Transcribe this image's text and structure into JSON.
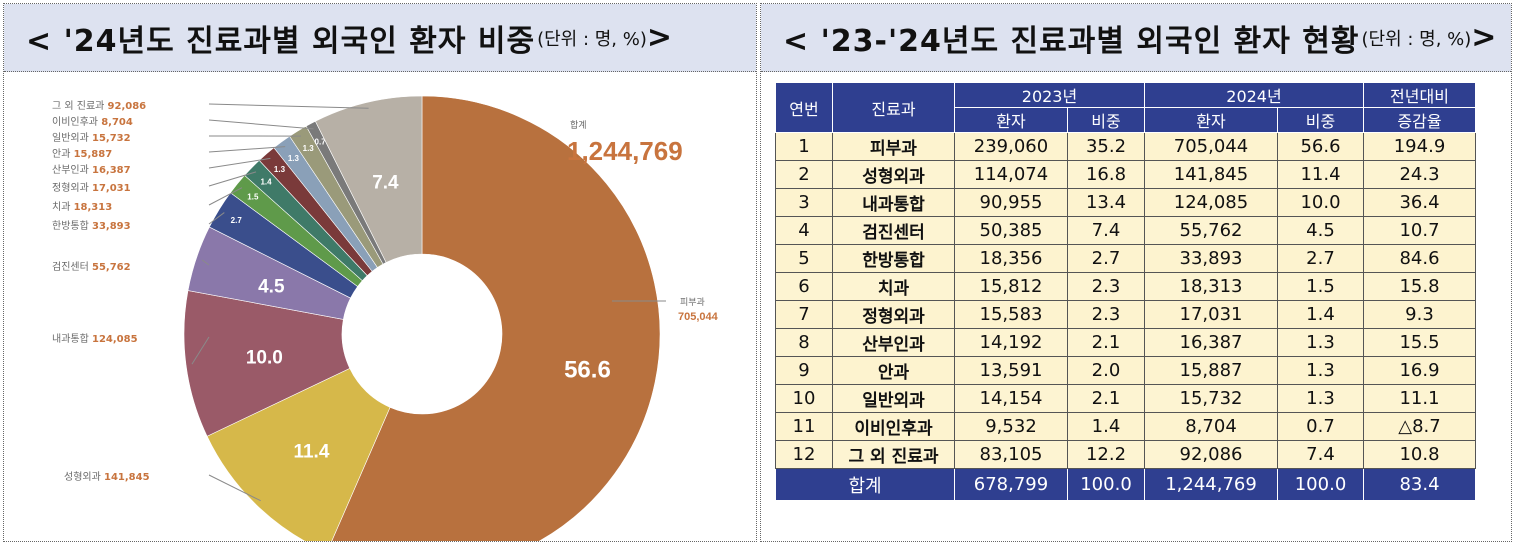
{
  "left": {
    "title_main": "< '24년도 진료과별 외국인 환자 비중",
    "title_unit": "(단위 : 명, %)",
    "title_end": " >"
  },
  "right": {
    "title_main": "< '23-'24년도 진료과별 외국인 환자 현황",
    "title_unit": "(단위 : 명, %)",
    "title_end": " >"
  },
  "chart_data": {
    "type": "pie",
    "donut": true,
    "total_label": "합계",
    "total_value": "1,244,769",
    "slices": [
      {
        "name": "피부과",
        "value": 56.6,
        "label": "56.6",
        "count": "705,044",
        "color": "#b8713e"
      },
      {
        "name": "성형외과",
        "value": 11.4,
        "label": "11.4",
        "count": "141,845",
        "color": "#d6b84a"
      },
      {
        "name": "내과통합",
        "value": 10.0,
        "label": "10.0",
        "count": "124,085",
        "color": "#9a5a68"
      },
      {
        "name": "검진센터",
        "value": 4.5,
        "label": "4.5",
        "count": "55,762",
        "color": "#8a78aa"
      },
      {
        "name": "한방통합",
        "value": 2.7,
        "label": "2.7",
        "count": "33,893",
        "color": "#3a4e8c"
      },
      {
        "name": "치과",
        "value": 1.5,
        "label": "1.5",
        "count": "18,313",
        "color": "#5f9a4a"
      },
      {
        "name": "정형외과",
        "value": 1.4,
        "label": "1.4",
        "count": "17,031",
        "color": "#3f7a68"
      },
      {
        "name": "산부인과",
        "value": 1.3,
        "label": "1.3",
        "count": "16,387",
        "color": "#7a3a3a"
      },
      {
        "name": "안과",
        "value": 1.3,
        "label": "1.3",
        "count": "15,887",
        "color": "#8aa0b8"
      },
      {
        "name": "일반외과",
        "value": 1.3,
        "label": "1.3",
        "count": "15,732",
        "color": "#9a9a7a"
      },
      {
        "name": "이비인후과",
        "value": 0.7,
        "label": "0.7",
        "count": "8,704",
        "color": "#7a7a7a"
      },
      {
        "name": "그 외 진료과",
        "value": 7.4,
        "label": "7.4",
        "count": "92,086",
        "color": "#b7b0a6"
      }
    ]
  },
  "table": {
    "headers": {
      "no": "연번",
      "dept": "진료과",
      "y2023": "2023년",
      "y2024": "2024년",
      "change1": "전년대비",
      "change2": "증감율",
      "patients": "환자",
      "share": "비중"
    },
    "rows": [
      [
        "1",
        "피부과",
        "239,060",
        "35.2",
        "705,044",
        "56.6",
        "194.9"
      ],
      [
        "2",
        "성형외과",
        "114,074",
        "16.8",
        "141,845",
        "11.4",
        "24.3"
      ],
      [
        "3",
        "내과통합",
        "90,955",
        "13.4",
        "124,085",
        "10.0",
        "36.4"
      ],
      [
        "4",
        "검진센터",
        "50,385",
        "7.4",
        "55,762",
        "4.5",
        "10.7"
      ],
      [
        "5",
        "한방통합",
        "18,356",
        "2.7",
        "33,893",
        "2.7",
        "84.6"
      ],
      [
        "6",
        "치과",
        "15,812",
        "2.3",
        "18,313",
        "1.5",
        "15.8"
      ],
      [
        "7",
        "정형외과",
        "15,583",
        "2.3",
        "17,031",
        "1.4",
        "9.3"
      ],
      [
        "8",
        "산부인과",
        "14,192",
        "2.1",
        "16,387",
        "1.3",
        "15.5"
      ],
      [
        "9",
        "안과",
        "13,591",
        "2.0",
        "15,887",
        "1.3",
        "16.9"
      ],
      [
        "10",
        "일반외과",
        "14,154",
        "2.1",
        "15,732",
        "1.3",
        "11.1"
      ],
      [
        "11",
        "이비인후과",
        "9,532",
        "1.4",
        "8,704",
        "0.7",
        "△8.7"
      ],
      [
        "12",
        "그 외 진료과",
        "83,105",
        "12.2",
        "92,086",
        "7.4",
        "10.8"
      ]
    ],
    "total": [
      "합계",
      "678,799",
      "100.0",
      "1,244,769",
      "100.0",
      "83.4"
    ]
  }
}
